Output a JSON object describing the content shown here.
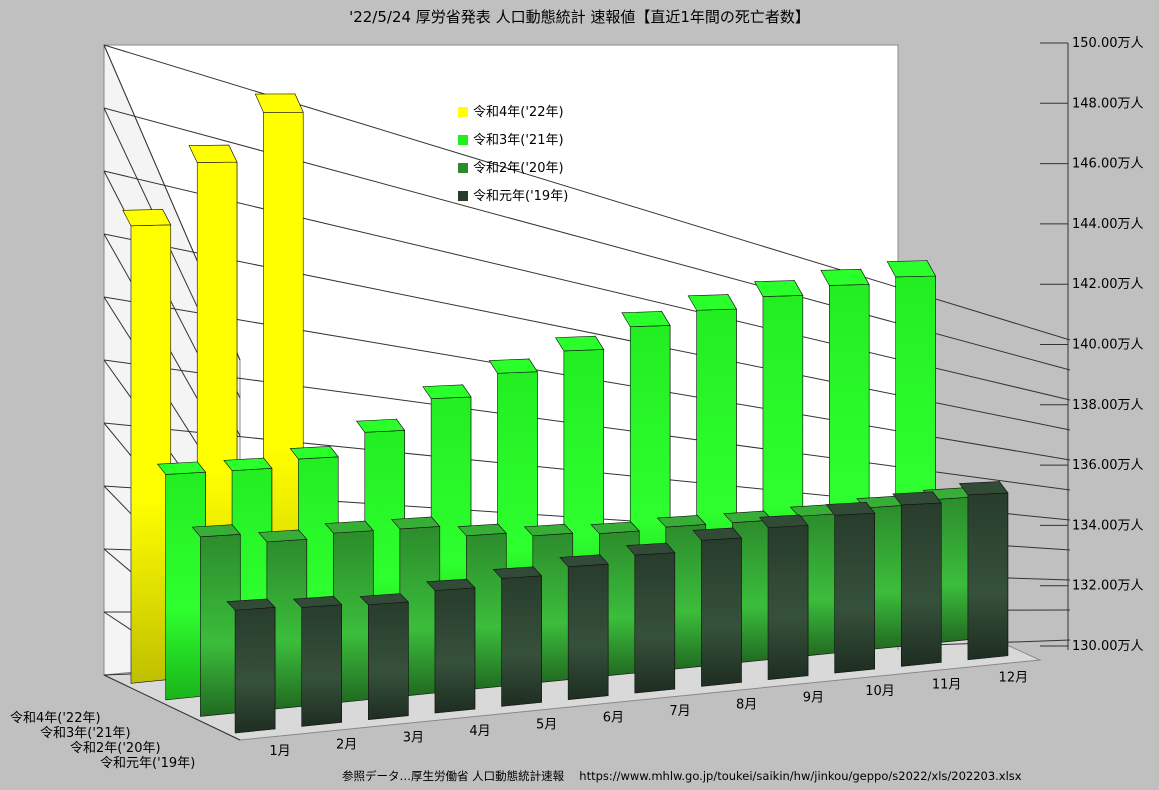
{
  "chart_data": {
    "type": "bar",
    "title": "'22/5/24 厚労省発表 人口動態統計 速報値【直近1年間の死亡者数】",
    "categories": [
      "1月",
      "2月",
      "3月",
      "4月",
      "5月",
      "6月",
      "7月",
      "8月",
      "9月",
      "10月",
      "11月",
      "12月"
    ],
    "y_unit": "万人",
    "ylim": [
      130,
      150
    ],
    "y_ticks": [
      "130.00万人",
      "132.00万人",
      "134.00万人",
      "136.00万人",
      "138.00万人",
      "140.00万人",
      "142.00万人",
      "144.00万人",
      "146.00万人",
      "148.00万人",
      "150.00万人"
    ],
    "series": [
      {
        "name": "令和4年('22年)",
        "color": "#ffff00",
        "values": [
          145.4,
          147.5,
          149.2,
          null,
          null,
          null,
          null,
          null,
          null,
          null,
          null,
          null
        ]
      },
      {
        "name": "令和3年('21年)",
        "color": "#22ee22",
        "values": [
          138.5,
          138.5,
          138.8,
          139.7,
          140.9,
          141.8,
          142.6,
          143.5,
          144.1,
          144.6,
          145.0,
          145.3
        ]
      },
      {
        "name": "令和2年('20年)",
        "color": "#2c8c2c",
        "values": [
          137.7,
          137.3,
          137.5,
          137.5,
          137.0,
          136.8,
          136.7,
          136.8,
          136.8,
          136.9,
          137.1,
          137.3
        ]
      },
      {
        "name": "令和元年('19年)",
        "color": "#283c2c",
        "values": [
          136.1,
          136.0,
          135.9,
          136.4,
          136.8,
          137.2,
          137.6,
          138.2,
          138.7,
          139.2,
          139.6,
          140.0
        ]
      }
    ],
    "grid": true,
    "legend_position": "top-center"
  },
  "source_note": "参照データ…厚生労働省 人口動態統計速報　 https://www.mhlw.go.jp/toukei/saikin/hw/jinkou/geppo/s2022/xls/202203.xlsx"
}
